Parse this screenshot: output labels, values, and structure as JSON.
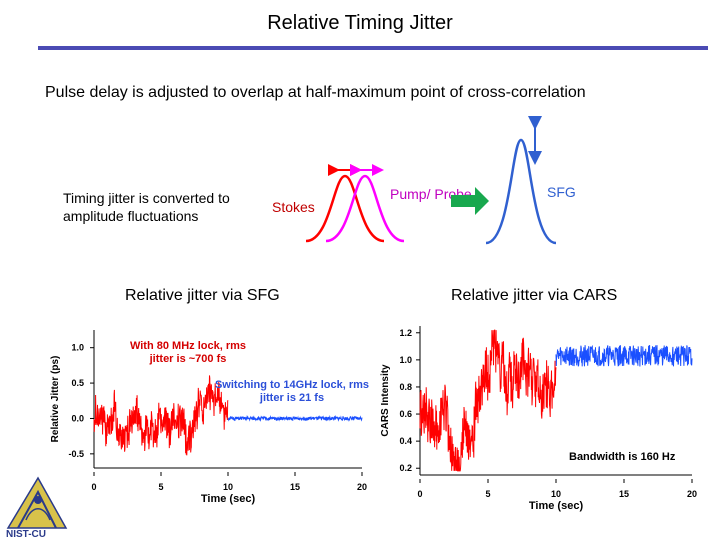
{
  "slide": {
    "title": "Relative Timing Jitter",
    "subtitle": "Pulse delay is adjusted to overlap at half-maximum point of cross-correlation",
    "jitter_note": "Timing jitter is converted to amplitude fluctuations",
    "stokes_label": "Stokes",
    "pump_label": "Pump/ Probe",
    "sfg_label": "SFG",
    "sfg_heading": "Relative jitter via SFG",
    "cars_heading": "Relative jitter via CARS",
    "logo_text": "NIST-CU"
  },
  "colors": {
    "accent": "#4b4bb4",
    "red": "#ff0000",
    "magenta": "#ff00ff",
    "blue": "#3060ff",
    "arrow_green": "#18a84e"
  },
  "chart_data": [
    {
      "type": "line",
      "title": "",
      "xlabel": "Time (sec)",
      "ylabel": "Relative Jitter (ps)",
      "xlim": [
        0,
        20
      ],
      "ylim": [
        -0.7,
        1.25
      ],
      "x_ticks": [
        "0",
        "5",
        "10",
        "15",
        "20"
      ],
      "y_ticks": [
        "1.0",
        "0.5",
        "0.0",
        "-0.5"
      ],
      "annotations": [
        "With 80 MHz lock, rms jitter is ~700 fs",
        "Switching to 14GHz lock, rms jitter is 21 fs"
      ],
      "series": [
        {
          "name": "80 MHz lock",
          "color": "#ff0000",
          "x_range": [
            0,
            10
          ],
          "mean": 0.1,
          "rms": 0.7
        },
        {
          "name": "14 GHz lock",
          "color": "#1a4fff",
          "x_range": [
            10,
            20
          ],
          "mean": 0.0,
          "rms": 0.021
        }
      ]
    },
    {
      "type": "line",
      "title": "",
      "xlabel": "Time (sec)",
      "ylabel": "CARS Intensity",
      "xlim": [
        0,
        20
      ],
      "ylim": [
        0.15,
        1.25
      ],
      "x_ticks": [
        "0",
        "5",
        "10",
        "15",
        "20"
      ],
      "y_ticks": [
        "1.2",
        "1.0",
        "0.8",
        "0.6",
        "0.4",
        "0.2"
      ],
      "annotations": [
        "Bandwidth is 160 Hz"
      ],
      "series": [
        {
          "name": "80 MHz lock",
          "color": "#ff0000",
          "x_range": [
            0,
            10
          ],
          "mean": 0.65
        },
        {
          "name": "14 GHz lock",
          "color": "#1a4fff",
          "x_range": [
            10,
            20
          ],
          "mean": 1.03
        }
      ]
    }
  ]
}
